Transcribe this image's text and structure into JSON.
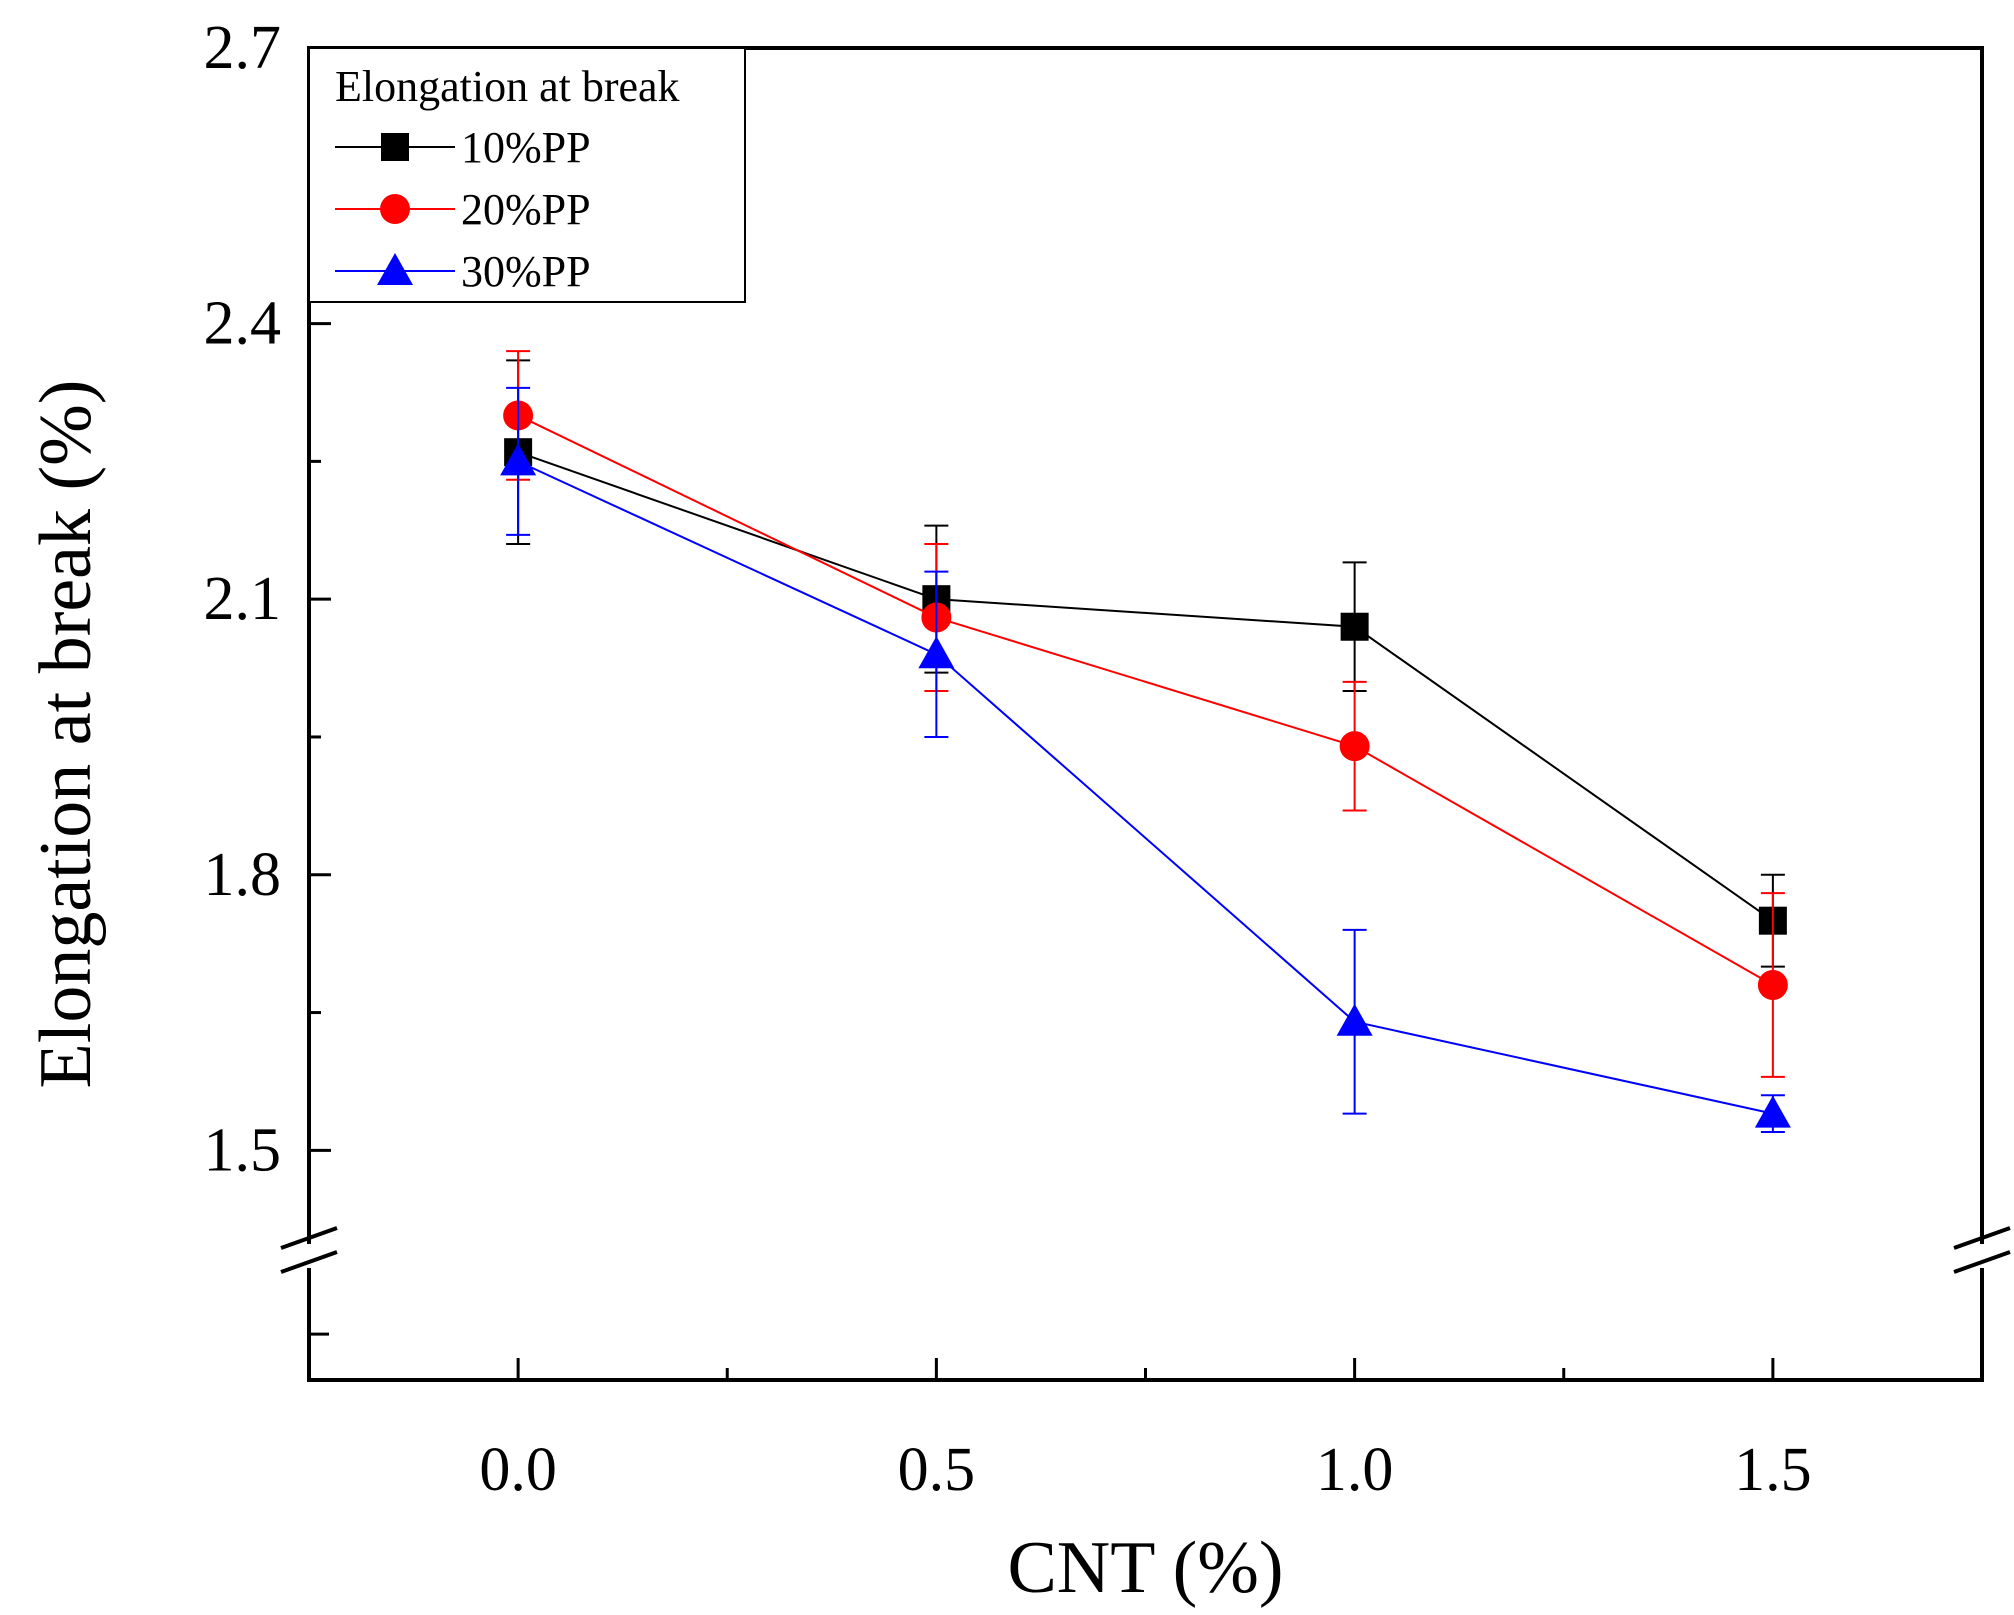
{
  "chart_data": {
    "type": "line",
    "title": "",
    "xlabel": "CNT (%)",
    "ylabel": "Elongation at break (%)",
    "x": [
      0.0,
      0.5,
      1.0,
      1.5
    ],
    "xticks": [
      "0.0",
      "0.5",
      "1.0",
      "1.5"
    ],
    "yticks": [
      "1.5",
      "1.8",
      "2.1",
      "2.4",
      "2.7"
    ],
    "xlim": [
      -0.25,
      1.75
    ],
    "ylim": [
      1.25,
      2.7
    ],
    "axis_break": true,
    "legend": {
      "title": "Elongation at break",
      "position": "top-left"
    },
    "series": [
      {
        "name": "10%PP",
        "color": "#000000",
        "marker": "square",
        "values": [
          2.26,
          2.1,
          2.07,
          1.75
        ],
        "errors": [
          0.1,
          0.08,
          0.07,
          0.05
        ]
      },
      {
        "name": "20%PP",
        "color": "#ff0000",
        "marker": "circle",
        "values": [
          2.3,
          2.08,
          1.94,
          1.68
        ],
        "errors": [
          0.07,
          0.08,
          0.07,
          0.1
        ]
      },
      {
        "name": "30%PP",
        "color": "#0000ff",
        "marker": "triangle",
        "values": [
          2.25,
          2.04,
          1.64,
          1.54
        ],
        "errors": [
          0.08,
          0.09,
          0.1,
          0.02
        ]
      }
    ]
  }
}
